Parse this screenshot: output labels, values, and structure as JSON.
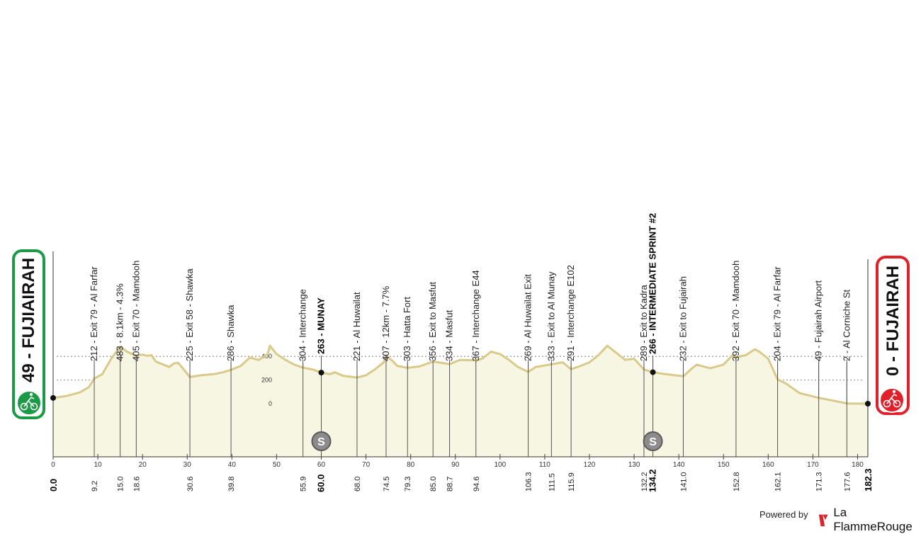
{
  "start": {
    "label": "49 - FUJIAIRAH",
    "color": "#1a9a45"
  },
  "finish": {
    "label": "0 - FUJAIRAH",
    "color": "#e2202a"
  },
  "footer": {
    "powered_by": "Powered by",
    "brand": "La FlammeRouge"
  },
  "chart_data": {
    "type": "area",
    "x_range": [
      0,
      182.3
    ],
    "altitude_ticks": [
      0,
      200,
      400
    ],
    "x_ticks": [
      0,
      10,
      20,
      30,
      40,
      50,
      60,
      70,
      80,
      90,
      100,
      110,
      120,
      130,
      140,
      150,
      160,
      170,
      180
    ],
    "profile": [
      [
        0,
        49
      ],
      [
        3,
        65
      ],
      [
        6,
        95
      ],
      [
        8,
        140
      ],
      [
        9.2,
        212
      ],
      [
        11,
        250
      ],
      [
        13,
        380
      ],
      [
        15,
        483
      ],
      [
        16.5,
        440
      ],
      [
        18.6,
        405
      ],
      [
        20,
        415
      ],
      [
        21,
        405
      ],
      [
        22,
        410
      ],
      [
        23,
        355
      ],
      [
        26,
        310
      ],
      [
        27,
        340
      ],
      [
        28,
        345
      ],
      [
        29,
        300
      ],
      [
        30.6,
        225
      ],
      [
        33,
        240
      ],
      [
        36,
        250
      ],
      [
        38,
        265
      ],
      [
        39.8,
        286
      ],
      [
        42,
        320
      ],
      [
        44,
        390
      ],
      [
        46,
        370
      ],
      [
        48,
        420
      ],
      [
        48.5,
        490
      ],
      [
        50,
        420
      ],
      [
        52,
        370
      ],
      [
        54,
        330
      ],
      [
        55.9,
        304
      ],
      [
        58,
        290
      ],
      [
        60,
        263
      ],
      [
        62,
        250
      ],
      [
        63,
        265
      ],
      [
        65,
        235
      ],
      [
        68,
        221
      ],
      [
        70,
        240
      ],
      [
        72,
        290
      ],
      [
        74,
        350
      ],
      [
        74.5,
        407
      ],
      [
        76,
        360
      ],
      [
        77,
        320
      ],
      [
        79.3,
        303
      ],
      [
        82,
        315
      ],
      [
        85,
        356
      ],
      [
        88.7,
        334
      ],
      [
        91,
        370
      ],
      [
        94.6,
        367
      ],
      [
        96,
        380
      ],
      [
        98,
        440
      ],
      [
        100,
        420
      ],
      [
        102,
        370
      ],
      [
        104,
        310
      ],
      [
        106.3,
        269
      ],
      [
        108,
        310
      ],
      [
        111.5,
        333
      ],
      [
        114,
        350
      ],
      [
        115.9,
        291
      ],
      [
        118,
        320
      ],
      [
        120,
        350
      ],
      [
        122,
        410
      ],
      [
        124,
        490
      ],
      [
        126,
        430
      ],
      [
        128,
        370
      ],
      [
        130,
        380
      ],
      [
        132.2,
        289
      ],
      [
        134.2,
        266
      ],
      [
        137,
        250
      ],
      [
        141,
        232
      ],
      [
        143,
        300
      ],
      [
        144,
        330
      ],
      [
        147,
        300
      ],
      [
        150,
        330
      ],
      [
        152,
        410
      ],
      [
        152.8,
        392
      ],
      [
        155,
        410
      ],
      [
        157,
        460
      ],
      [
        158,
        440
      ],
      [
        160,
        380
      ],
      [
        162.1,
        204
      ],
      [
        164,
        170
      ],
      [
        167,
        90
      ],
      [
        171.3,
        49
      ],
      [
        174,
        30
      ],
      [
        177.6,
        2
      ],
      [
        182.3,
        0
      ]
    ],
    "markers": [
      {
        "km": "9.2",
        "x": 9.2,
        "label": "212 - Exit 79 - Al Farfar"
      },
      {
        "km": "15.0",
        "x": 15.0,
        "label": "483 - 8.1km - 4.3%"
      },
      {
        "km": "18.6",
        "x": 18.6,
        "label": "405 - Exit 70 - Mamdooh"
      },
      {
        "km": "30.6",
        "x": 30.6,
        "label": "225 - Exit 58 - Shawka"
      },
      {
        "km": "39.8",
        "x": 39.8,
        "label": "286 - Shawka"
      },
      {
        "km": "55.9",
        "x": 55.9,
        "label": "304 - Interchange"
      },
      {
        "km": "60.0",
        "x": 60.0,
        "label": "263 - MUNAY",
        "bold": true,
        "sprint": true
      },
      {
        "km": "68.0",
        "x": 68.0,
        "label": "221 - Al Huwailat"
      },
      {
        "km": "74.5",
        "x": 74.5,
        "label": "407 - 12km - 7.7%"
      },
      {
        "km": "79.3",
        "x": 79.3,
        "label": "303 - Hatta Fort"
      },
      {
        "km": "85.0",
        "x": 85.0,
        "label": "356 - Exit to Masfut"
      },
      {
        "km": "88.7",
        "x": 88.7,
        "label": "334 - Masfut"
      },
      {
        "km": "94.6",
        "x": 94.6,
        "label": "367 - Interchange E44"
      },
      {
        "km": "106.3",
        "x": 106.3,
        "label": "269 - Al Huwailat Exit"
      },
      {
        "km": "111.5",
        "x": 111.5,
        "label": "333 - Exit to Al Munay"
      },
      {
        "km": "115.9",
        "x": 115.9,
        "label": "291 - Interchange E102"
      },
      {
        "km": "132.2",
        "x": 132.2,
        "label": "289 - Exit to Kadra"
      },
      {
        "km": "134.2",
        "x": 134.2,
        "label": "266 - INTERMEDIATE SPRINT #2",
        "bold": true,
        "sprint": true
      },
      {
        "km": "141.0",
        "x": 141.0,
        "label": "232 - Exit to Fujairah"
      },
      {
        "km": "152.8",
        "x": 152.8,
        "label": "392 - Exit 70 - Mamdooh"
      },
      {
        "km": "162.1",
        "x": 162.1,
        "label": "204 - Exit 79 - Al Farfar"
      },
      {
        "km": "171.3",
        "x": 171.3,
        "label": "49 - Fujairah Airport"
      },
      {
        "km": "177.6",
        "x": 177.6,
        "label": "2 - Al Corniche St"
      }
    ],
    "endpoints": [
      {
        "km": "0.0",
        "x": 0
      },
      {
        "km": "182.3",
        "x": 182.3
      }
    ],
    "sprint_symbol": "S"
  }
}
